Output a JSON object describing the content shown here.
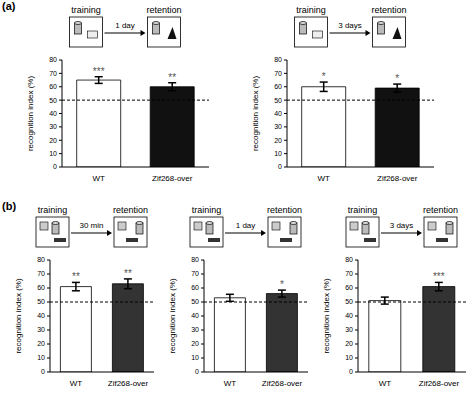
{
  "chart_data": [
    {
      "type": "bar",
      "title": "(a)",
      "annotations": [
        "training",
        "1 day",
        "retention"
      ],
      "categories": [
        "WT",
        "Zif268-over"
      ],
      "values": [
        65,
        60
      ],
      "errors": [
        2.5,
        3
      ],
      "significance": [
        "***",
        "**"
      ],
      "reference": 50,
      "colors": [
        "#ffffff",
        "#111111"
      ],
      "ylabel": "recognition index (%)",
      "ylim": [
        0,
        80
      ],
      "yticks": [
        0,
        10,
        20,
        30,
        40,
        50,
        60,
        70,
        80
      ],
      "grid": false
    },
    {
      "type": "bar",
      "annotations": [
        "training",
        "3 days",
        "retention"
      ],
      "categories": [
        "WT",
        "Zif268-over"
      ],
      "values": [
        60,
        59
      ],
      "errors": [
        3.5,
        3
      ],
      "significance": [
        "*",
        "*"
      ],
      "reference": 50,
      "colors": [
        "#ffffff",
        "#111111"
      ],
      "ylabel": "recognition index (%)",
      "ylim": [
        0,
        80
      ],
      "yticks": [
        0,
        10,
        20,
        30,
        40,
        50,
        60,
        70,
        80
      ],
      "grid": false
    },
    {
      "type": "bar",
      "title": "(b)",
      "annotations": [
        "training",
        "30 min",
        "retention"
      ],
      "categories": [
        "WT",
        "Zif268-over"
      ],
      "values": [
        61,
        63
      ],
      "errors": [
        3,
        3.5
      ],
      "significance": [
        "**",
        "**"
      ],
      "reference": 50,
      "colors": [
        "#ffffff",
        "#333333"
      ],
      "ylabel": "recognition index (%)",
      "ylim": [
        0,
        80
      ],
      "yticks": [
        0,
        10,
        20,
        30,
        40,
        50,
        60,
        70,
        80
      ],
      "grid": false
    },
    {
      "type": "bar",
      "annotations": [
        "training",
        "1 day",
        "retention"
      ],
      "categories": [
        "WT",
        "Zif268-over"
      ],
      "values": [
        53,
        56
      ],
      "errors": [
        2.5,
        2.5
      ],
      "significance": [
        null,
        "*"
      ],
      "reference": 50,
      "colors": [
        "#ffffff",
        "#333333"
      ],
      "ylabel": "recognition index (%)",
      "ylim": [
        0,
        80
      ],
      "yticks": [
        0,
        10,
        20,
        30,
        40,
        50,
        60,
        70,
        80
      ],
      "grid": false
    },
    {
      "type": "bar",
      "annotations": [
        "training",
        "3 days",
        "retention"
      ],
      "categories": [
        "WT",
        "Zif268-over"
      ],
      "values": [
        51,
        61
      ],
      "errors": [
        2.5,
        3
      ],
      "significance": [
        null,
        "***"
      ],
      "reference": 50,
      "colors": [
        "#ffffff",
        "#333333"
      ],
      "ylabel": "recognition index (%)",
      "ylim": [
        0,
        80
      ],
      "yticks": [
        0,
        10,
        20,
        30,
        40,
        50,
        60,
        70,
        80
      ],
      "grid": false
    }
  ]
}
